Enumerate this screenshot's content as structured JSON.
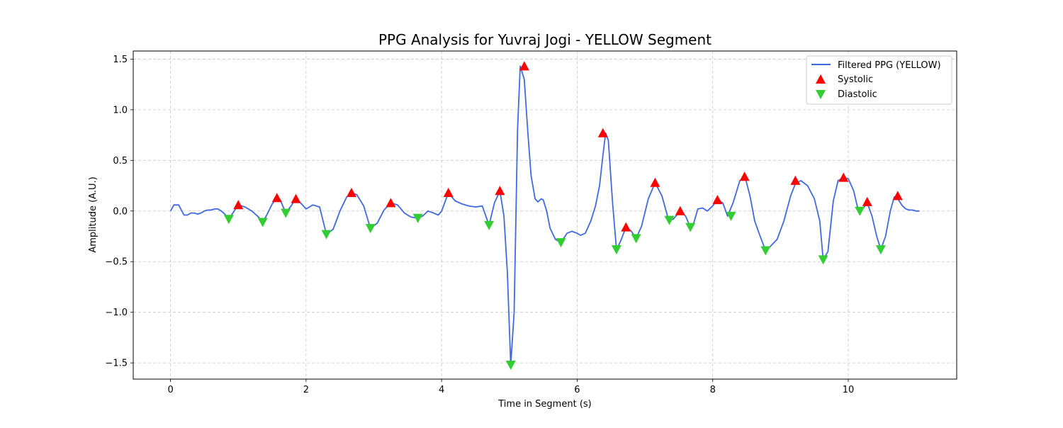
{
  "chart_data": {
    "type": "line",
    "title": "PPG Analysis for Yuvraj Jogi - YELLOW Segment",
    "xlabel": "Time in Segment (s)",
    "ylabel": "Amplitude (A.U.)",
    "xlim": [
      -0.55,
      11.6
    ],
    "ylim": [
      -1.66,
      1.58
    ],
    "xticks": [
      0,
      2,
      4,
      6,
      8,
      10
    ],
    "xtick_labels": [
      "0",
      "2",
      "4",
      "6",
      "8",
      "10"
    ],
    "yticks": [
      1.5,
      1.0,
      0.5,
      0.0,
      -0.5,
      -1.0,
      -1.5
    ],
    "ytick_labels": [
      "1.5",
      "1.0",
      "0.5",
      "0.0",
      "−0.5",
      "−1.0",
      "−1.5"
    ],
    "grid": true,
    "legend_position": "top-right",
    "colors": {
      "signal": "#4169e1",
      "systolic": "#ff0000",
      "diastolic": "#32cd32"
    },
    "series": [
      {
        "name": "Filtered PPG (YELLOW)",
        "kind": "line",
        "x": [
          0.0,
          0.05,
          0.12,
          0.2,
          0.25,
          0.3,
          0.35,
          0.4,
          0.45,
          0.5,
          0.55,
          0.6,
          0.65,
          0.7,
          0.75,
          0.8,
          0.86,
          0.92,
          1.0,
          1.1,
          1.2,
          1.3,
          1.36,
          1.42,
          1.5,
          1.57,
          1.62,
          1.7,
          1.78,
          1.85,
          1.92,
          2.0,
          2.05,
          2.1,
          2.2,
          2.3,
          2.4,
          2.5,
          2.6,
          2.67,
          2.75,
          2.85,
          2.95,
          3.05,
          3.15,
          3.25,
          3.35,
          3.45,
          3.55,
          3.65,
          3.72,
          3.8,
          3.88,
          3.95,
          4.0,
          4.1,
          4.2,
          4.3,
          4.4,
          4.5,
          4.6,
          4.7,
          4.78,
          4.86,
          4.92,
          4.97,
          5.02,
          5.07,
          5.12,
          5.16,
          5.22,
          5.27,
          5.32,
          5.38,
          5.42,
          5.47,
          5.5,
          5.55,
          5.6,
          5.68,
          5.76,
          5.85,
          5.92,
          6.0,
          6.05,
          6.12,
          6.2,
          6.27,
          6.33,
          6.38,
          6.42,
          6.46,
          6.52,
          6.58,
          6.64,
          6.72,
          6.8,
          6.87,
          6.95,
          7.05,
          7.15,
          7.25,
          7.35,
          7.42,
          7.52,
          7.6,
          7.67,
          7.72,
          7.78,
          7.85,
          7.92,
          8.0,
          8.07,
          8.15,
          8.22,
          8.3,
          8.4,
          8.48,
          8.55,
          8.62,
          8.7,
          8.78,
          8.85,
          8.95,
          9.05,
          9.15,
          9.22,
          9.3,
          9.4,
          9.5,
          9.58,
          9.63,
          9.7,
          9.78,
          9.85,
          9.93,
          10.0,
          10.08,
          10.15,
          10.2,
          10.28,
          10.35,
          10.42,
          10.48,
          10.55,
          10.62,
          10.68,
          10.73,
          10.8,
          10.85,
          10.9,
          10.95,
          11.0,
          11.05
        ],
        "y": [
          0.0,
          0.06,
          0.06,
          -0.04,
          -0.04,
          -0.02,
          -0.02,
          -0.03,
          -0.02,
          0.0,
          0.01,
          0.01,
          0.02,
          0.02,
          0.0,
          -0.03,
          -0.08,
          -0.02,
          0.06,
          0.04,
          0.0,
          -0.06,
          -0.11,
          -0.04,
          0.07,
          0.13,
          0.11,
          -0.02,
          0.05,
          0.12,
          0.08,
          0.02,
          0.04,
          0.06,
          0.04,
          -0.23,
          -0.18,
          0.0,
          0.14,
          0.18,
          0.16,
          0.05,
          -0.17,
          -0.12,
          0.01,
          0.08,
          0.06,
          -0.02,
          -0.06,
          -0.07,
          -0.05,
          0.0,
          -0.02,
          -0.04,
          0.0,
          0.18,
          0.1,
          0.07,
          0.05,
          0.04,
          0.05,
          -0.14,
          0.08,
          0.2,
          -0.05,
          -0.6,
          -1.52,
          -1.0,
          0.8,
          1.43,
          1.3,
          0.8,
          0.35,
          0.12,
          0.09,
          0.12,
          0.11,
          0.0,
          -0.17,
          -0.28,
          -0.31,
          -0.22,
          -0.2,
          -0.22,
          -0.24,
          -0.22,
          -0.1,
          0.05,
          0.25,
          0.55,
          0.77,
          0.7,
          0.1,
          -0.38,
          -0.3,
          -0.16,
          -0.2,
          -0.27,
          -0.15,
          0.12,
          0.28,
          0.15,
          -0.09,
          -0.08,
          0.0,
          -0.05,
          -0.16,
          -0.12,
          0.02,
          0.03,
          0.0,
          0.05,
          0.11,
          0.08,
          -0.05,
          0.08,
          0.3,
          0.33,
          0.15,
          -0.1,
          -0.25,
          -0.39,
          -0.35,
          -0.28,
          -0.1,
          0.15,
          0.27,
          0.3,
          0.25,
          0.12,
          -0.1,
          -0.48,
          -0.4,
          0.1,
          0.3,
          0.33,
          0.32,
          0.2,
          0.0,
          0.01,
          0.08,
          -0.05,
          -0.25,
          -0.38,
          -0.25,
          0.0,
          0.14,
          0.12,
          0.05,
          0.02,
          0.01,
          0.01,
          0.0,
          0.0
        ]
      },
      {
        "name": "Systolic",
        "kind": "marker-up",
        "x": [
          1.0,
          1.57,
          1.85,
          2.67,
          3.25,
          4.1,
          4.86,
          5.22,
          6.38,
          6.72,
          7.15,
          7.52,
          8.07,
          8.47,
          9.22,
          9.93,
          10.28,
          10.73
        ],
        "y": [
          0.06,
          0.13,
          0.12,
          0.18,
          0.08,
          0.18,
          0.2,
          1.43,
          0.77,
          -0.16,
          0.28,
          0.0,
          0.11,
          0.34,
          0.3,
          0.33,
          0.09,
          0.15
        ]
      },
      {
        "name": "Diastolic",
        "kind": "marker-down",
        "x": [
          0.86,
          1.36,
          1.7,
          2.3,
          2.95,
          3.65,
          4.7,
          5.02,
          5.76,
          6.58,
          6.87,
          7.36,
          7.67,
          8.27,
          8.78,
          9.63,
          10.17,
          10.48
        ],
        "y": [
          -0.08,
          -0.11,
          -0.02,
          -0.23,
          -0.17,
          -0.07,
          -0.14,
          -1.52,
          -0.31,
          -0.38,
          -0.27,
          -0.09,
          -0.16,
          -0.05,
          -0.39,
          -0.48,
          0.0,
          -0.38
        ]
      }
    ]
  }
}
